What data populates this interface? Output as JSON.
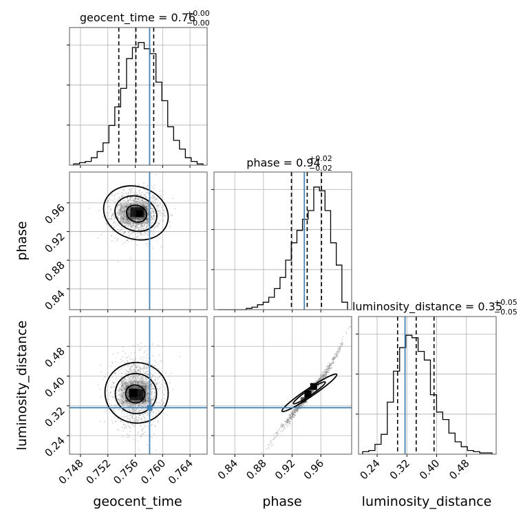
{
  "chart_data": {
    "type": "corner",
    "parameters": [
      "geocent_time",
      "phase",
      "luminosity_distance"
    ],
    "titles": {
      "geocent_time": {
        "name": "geocent_time",
        "median": "0.76",
        "plus": "+0.00",
        "minus": "−0.00"
      },
      "phase": {
        "name": "phase",
        "median": "0.94",
        "plus": "+0.02",
        "minus": "−0.02"
      },
      "luminosity_distance": {
        "name": "luminosity_distance",
        "median": "0.35",
        "plus": "+0.05",
        "minus": "−0.05"
      }
    },
    "axis_labels": {
      "geocent_time": "geocent_time",
      "phase": "phase",
      "luminosity_distance": "luminosity_distance"
    },
    "ranges": {
      "geocent_time": [
        0.7464,
        0.7665
      ],
      "phase": [
        0.811,
        1.003
      ],
      "luminosity_distance": [
        0.19,
        0.56
      ]
    },
    "ticks": {
      "geocent_time": [
        "0.748",
        "0.752",
        "0.756",
        "0.760",
        "0.764"
      ],
      "phase": [
        "0.84",
        "0.88",
        "0.92",
        "0.96"
      ],
      "luminosity_distance": [
        "0.24",
        "0.32",
        "0.40",
        "0.48"
      ]
    },
    "truths": {
      "geocent_time": 0.7581,
      "phase": 0.937,
      "luminosity_distance": 0.315
    },
    "quantiles": {
      "geocent_time": [
        0.7536,
        0.7561,
        0.7587
      ],
      "phase": [
        0.919,
        0.941,
        0.961
      ],
      "luminosity_distance": [
        0.295,
        0.345,
        0.393
      ]
    },
    "histograms": {
      "geocent_time": [
        0.01,
        0.02,
        0.03,
        0.06,
        0.11,
        0.18,
        0.32,
        0.47,
        0.62,
        0.86,
        0.95,
        0.99,
        0.94,
        0.9,
        0.67,
        0.52,
        0.31,
        0.2,
        0.13,
        0.06,
        0.03,
        0.01
      ],
      "phase": [
        0.0,
        0.0,
        0.0,
        0.0,
        0.0,
        0.01,
        0.02,
        0.04,
        0.06,
        0.1,
        0.17,
        0.26,
        0.4,
        0.54,
        0.64,
        0.73,
        0.8,
        0.99,
        0.96,
        0.8,
        0.54,
        0.36,
        0.06
      ],
      "luminosity_distance": [
        0.02,
        0.03,
        0.08,
        0.16,
        0.42,
        0.67,
        0.86,
        0.96,
        0.94,
        0.83,
        0.76,
        0.48,
        0.34,
        0.28,
        0.17,
        0.1,
        0.06,
        0.03,
        0.02,
        0.01,
        0.01
      ]
    },
    "colors": {
      "truth": "#4682b4",
      "hist": "#000000",
      "grid": "#b0b0b0",
      "points": "#7f7f7f"
    },
    "grid": true
  }
}
